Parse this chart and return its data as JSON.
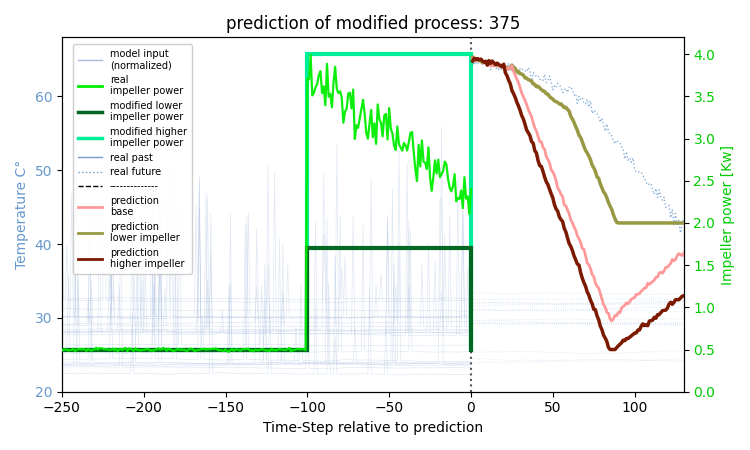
{
  "title": "prediction of modified process: 375",
  "xlabel": "Time-Step relative to prediction",
  "ylabel_left": "Temperature C°",
  "ylabel_right": "Impeller power [Kw]",
  "ylim_left": [
    20,
    68
  ],
  "ylim_right": [
    0.0,
    4.2
  ],
  "xlim": [
    -250,
    130
  ],
  "xticks": [
    -250,
    -200,
    -150,
    -100,
    -50,
    0,
    50,
    100
  ],
  "colors": {
    "real_impeller": "#00ee00",
    "modified_lower": "#006622",
    "modified_higher": "#00ee99",
    "real_past": "#7799cc",
    "real_future_dots": "#6699cc",
    "prediction_base": "#ff9999",
    "prediction_lower": "#999944",
    "prediction_higher": "#7B1A00",
    "vline": "#555555"
  },
  "right_yticks": [
    0.0,
    0.5,
    1.0,
    1.5,
    2.0,
    2.5,
    3.0,
    3.5,
    4.0
  ],
  "background_color": "#ffffff",
  "seed": 12
}
